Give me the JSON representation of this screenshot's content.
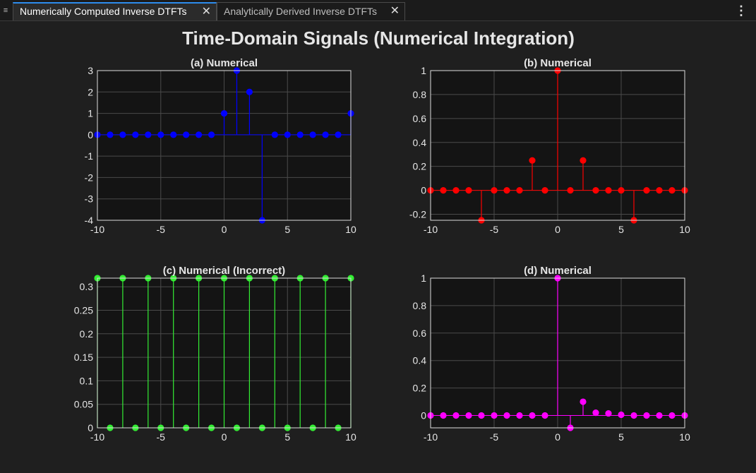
{
  "tabs": [
    {
      "label": "Numerically Computed Inverse DTFTs",
      "active": true
    },
    {
      "label": "Analytically Derived Inverse DTFTs",
      "active": false
    }
  ],
  "icons": {
    "menu": "menu-icon",
    "close": "close-icon",
    "more": "more-vertical-icon"
  },
  "figure": {
    "title": "Time-Domain Signals (Numerical Integration)"
  },
  "chart_data": [
    {
      "type": "stem",
      "title": "(a) Numerical",
      "color": "#0000ff",
      "x": [
        -10,
        -9,
        -8,
        -7,
        -6,
        -5,
        -4,
        -3,
        -2,
        -1,
        0,
        1,
        2,
        3,
        4,
        5,
        6,
        7,
        8,
        9,
        10
      ],
      "y": [
        0,
        0,
        0,
        0,
        0,
        0,
        0,
        0,
        0,
        0,
        1,
        3,
        2,
        -4,
        0,
        0,
        0,
        0,
        0,
        0,
        1
      ],
      "xlim": [
        -10,
        10
      ],
      "ylim": [
        -4,
        3
      ],
      "xticks": [
        "-10",
        "-5",
        "0",
        "5",
        "10"
      ],
      "xtick_values": [
        -10,
        -5,
        0,
        5,
        10
      ],
      "yticks": [
        "-4",
        "-3",
        "-2",
        "-1",
        "0",
        "1",
        "2",
        "3"
      ],
      "ytick_values": [
        -4,
        -3,
        -2,
        -1,
        0,
        1,
        2,
        3
      ],
      "grid": true
    },
    {
      "type": "stem",
      "title": "(b) Numerical",
      "color": "#ff0000",
      "x": [
        -10,
        -9,
        -8,
        -7,
        -6,
        -5,
        -4,
        -3,
        -2,
        -1,
        0,
        1,
        2,
        3,
        4,
        5,
        6,
        7,
        8,
        9,
        10
      ],
      "y": [
        0,
        0,
        0,
        0,
        -0.25,
        0,
        0,
        0,
        0.25,
        0,
        1,
        0,
        0.25,
        0,
        0,
        0,
        -0.25,
        0,
        0,
        0,
        0
      ],
      "xlim": [
        -10,
        10
      ],
      "ylim": [
        -0.25,
        1
      ],
      "xticks": [
        "-10",
        "-5",
        "0",
        "5",
        "10"
      ],
      "xtick_values": [
        -10,
        -5,
        0,
        5,
        10
      ],
      "yticks": [
        "-0.2",
        "0",
        "0.2",
        "0.4",
        "0.6",
        "0.8",
        "1"
      ],
      "ytick_values": [
        -0.2,
        0,
        0.2,
        0.4,
        0.6,
        0.8,
        1
      ],
      "grid": true
    },
    {
      "type": "stem",
      "title": "(c) Numerical (Incorrect)",
      "color": "#33ee33",
      "x": [
        -10,
        -9,
        -8,
        -7,
        -6,
        -5,
        -4,
        -3,
        -2,
        -1,
        0,
        1,
        2,
        3,
        4,
        5,
        6,
        7,
        8,
        9,
        10
      ],
      "y": [
        0.3183,
        0,
        0.3183,
        0,
        0.3183,
        0,
        0.3183,
        0,
        0.3183,
        0,
        0.3183,
        0,
        0.3183,
        0,
        0.3183,
        0,
        0.3183,
        0,
        0.3183,
        0,
        0.3183
      ],
      "xlim": [
        -10,
        10
      ],
      "ylim": [
        0,
        0.3183
      ],
      "xticks": [
        "-10",
        "-5",
        "0",
        "5",
        "10"
      ],
      "xtick_values": [
        -10,
        -5,
        0,
        5,
        10
      ],
      "yticks": [
        "0",
        "0.05",
        "0.1",
        "0.15",
        "0.2",
        "0.25",
        "0.3"
      ],
      "ytick_values": [
        0,
        0.05,
        0.1,
        0.15,
        0.2,
        0.25,
        0.3
      ],
      "grid": true
    },
    {
      "type": "stem",
      "title": "(d) Numerical",
      "color": "#ff00ff",
      "x": [
        -10,
        -9,
        -8,
        -7,
        -6,
        -5,
        -4,
        -3,
        -2,
        -1,
        0,
        1,
        2,
        3,
        4,
        5,
        6,
        7,
        8,
        9,
        10
      ],
      "y": [
        0,
        0,
        0,
        0,
        0,
        0,
        0,
        0,
        0,
        0,
        1,
        -0.09,
        0.1,
        0.02,
        0.015,
        0.005,
        0,
        0,
        0,
        0,
        0
      ],
      "xlim": [
        -10,
        10
      ],
      "ylim": [
        -0.09,
        1
      ],
      "xticks": [
        "-10",
        "-5",
        "0",
        "5",
        "10"
      ],
      "xtick_values": [
        -10,
        -5,
        0,
        5,
        10
      ],
      "yticks": [
        "0",
        "0.2",
        "0.4",
        "0.6",
        "0.8",
        "1"
      ],
      "ytick_values": [
        0,
        0.2,
        0.4,
        0.6,
        0.8,
        1
      ],
      "grid": true
    }
  ]
}
